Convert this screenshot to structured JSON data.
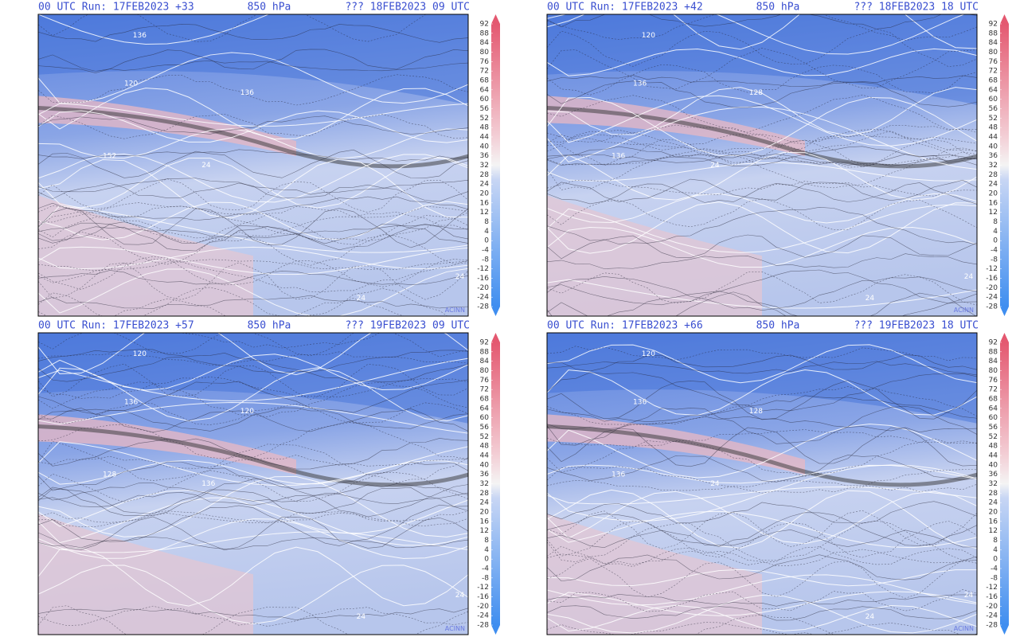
{
  "panels": [
    {
      "run": "00 UTC Run: 17FEB2023 +33",
      "level": "850 hPa",
      "valid": "??? 18FEB2023 09 UTC",
      "contour_labels": [
        "136",
        "120",
        "136",
        "152",
        "24",
        "24",
        "24"
      ]
    },
    {
      "run": "00 UTC Run: 17FEB2023 +42",
      "level": "850 hPa",
      "valid": "??? 18FEB2023 18 UTC",
      "contour_labels": [
        "120",
        "136",
        "128",
        "136",
        "24",
        "24",
        "24"
      ]
    },
    {
      "run": "00 UTC Run: 17FEB2023 +57",
      "level": "850 hPa",
      "valid": "??? 19FEB2023 09 UTC",
      "contour_labels": [
        "120",
        "136",
        "120",
        "128",
        "136",
        "24",
        "24"
      ]
    },
    {
      "run": "00 UTC Run: 17FEB2023 +66",
      "level": "850 hPa",
      "valid": "??? 19FEB2023 18 UTC",
      "contour_labels": [
        "120",
        "136",
        "128",
        "136",
        "24",
        "24",
        "24"
      ]
    }
  ],
  "colorbar": {
    "ticks": [
      92,
      88,
      84,
      80,
      76,
      72,
      68,
      64,
      60,
      56,
      52,
      48,
      44,
      40,
      36,
      32,
      28,
      24,
      20,
      16,
      12,
      8,
      4,
      0,
      -4,
      -8,
      -12,
      -16,
      -20,
      -24,
      -28
    ]
  },
  "credit": "ACINN"
}
